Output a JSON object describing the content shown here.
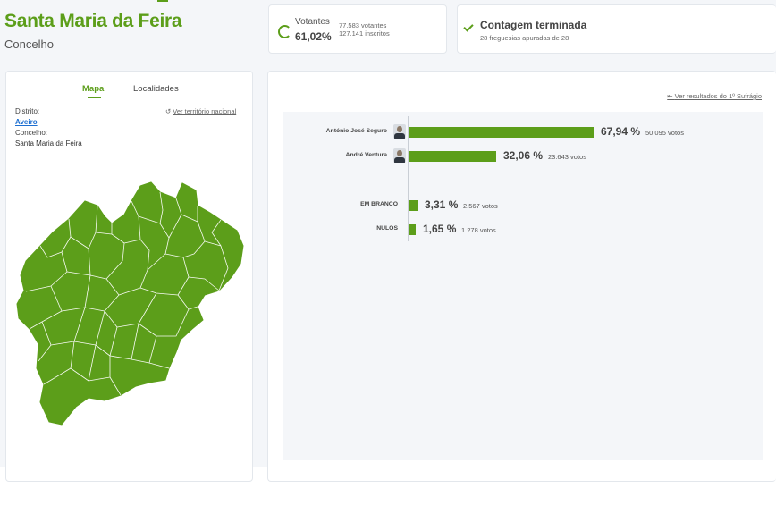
{
  "header": {
    "title": "Santa Maria da Feira",
    "subtitle": "Concelho"
  },
  "votantes": {
    "label": "Votantes",
    "percent": "61,02%",
    "votantes_line": "77.583 votantes",
    "inscritos_line": "127.141 inscritos"
  },
  "contagem": {
    "title": "Contagem terminada",
    "subtitle": "28 freguesias apuradas de 28"
  },
  "map_panel": {
    "tabs": [
      {
        "label": "Mapa",
        "active": true
      },
      {
        "label": "Localidades",
        "active": false
      }
    ],
    "distrito_label": "Distrito:",
    "distrito_value": "Aveiro",
    "concelho_label": "Concelho:",
    "concelho_value": "Santa Maria da Feira",
    "ver_nacional": "Ver território nacional",
    "map_color": "#5c9e1a"
  },
  "results": {
    "ver_primeiro": "Ver resultados do 1º Sufrágio",
    "accent": "#5c9e1a",
    "rows": [
      {
        "name": "António José Seguro",
        "percent_value": 67.94,
        "percent": "67,94 %",
        "votes": "50.095 votos",
        "has_avatar": true
      },
      {
        "name": "André Ventura",
        "percent_value": 32.06,
        "percent": "32,06 %",
        "votes": "23.643 votos",
        "has_avatar": true
      },
      {
        "name": "EM BRANCO",
        "percent_value": 3.31,
        "percent": "3,31 %",
        "votes": "2.567 votos",
        "has_avatar": false
      },
      {
        "name": "NULOS",
        "percent_value": 1.65,
        "percent": "1,65 %",
        "votes": "1.278 votos",
        "has_avatar": false
      }
    ]
  }
}
